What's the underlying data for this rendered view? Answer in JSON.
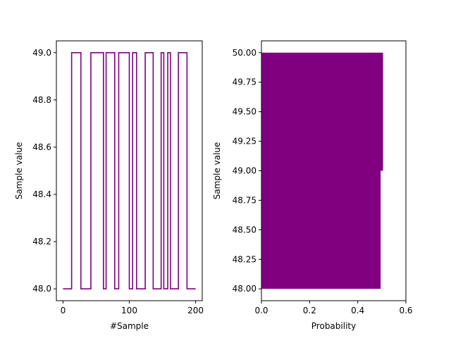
{
  "chart_data": [
    {
      "type": "line",
      "xlabel": "#Sample",
      "ylabel": "Sample value",
      "xlim": [
        -10,
        210
      ],
      "ylim": [
        47.95,
        49.05
      ],
      "xticks": [
        0,
        100,
        200
      ],
      "yticks": [
        48.0,
        48.2,
        48.4,
        48.6,
        48.8,
        49.0
      ],
      "ytick_labels": [
        "48.0",
        "48.2",
        "48.4",
        "48.6",
        "48.8",
        "49.0"
      ],
      "line_color": "#800080",
      "series": [
        {
          "step": "post",
          "x": [
            0,
            13,
            27,
            42,
            61,
            65,
            78,
            84,
            100,
            105,
            111,
            124,
            136,
            148,
            152,
            158,
            162,
            174,
            187,
            200
          ],
          "y": [
            48,
            49,
            48,
            49,
            48,
            49,
            48,
            49,
            48,
            49,
            48,
            49,
            48,
            49,
            48,
            49,
            48,
            49,
            48,
            48
          ]
        }
      ]
    },
    {
      "type": "bar",
      "orientation": "horizontal",
      "xlabel": "Probability",
      "ylabel": "Sample value",
      "xlim": [
        0,
        0.6
      ],
      "ylim": [
        47.9,
        50.1
      ],
      "xticks": [
        0.0,
        0.2,
        0.4,
        0.6
      ],
      "xtick_labels": [
        "0.0",
        "0.2",
        "0.4",
        "0.6"
      ],
      "yticks": [
        48.0,
        48.25,
        48.5,
        48.75,
        49.0,
        49.25,
        49.5,
        49.75,
        50.0
      ],
      "ytick_labels": [
        "48.00",
        "48.25",
        "48.50",
        "48.75",
        "49.00",
        "49.25",
        "49.50",
        "49.75",
        "50.00"
      ],
      "bar_color": "#800080",
      "categories": [
        48,
        49
      ],
      "bins": [
        [
          48,
          49
        ],
        [
          49,
          50
        ]
      ],
      "values": [
        0.495,
        0.505
      ]
    }
  ]
}
